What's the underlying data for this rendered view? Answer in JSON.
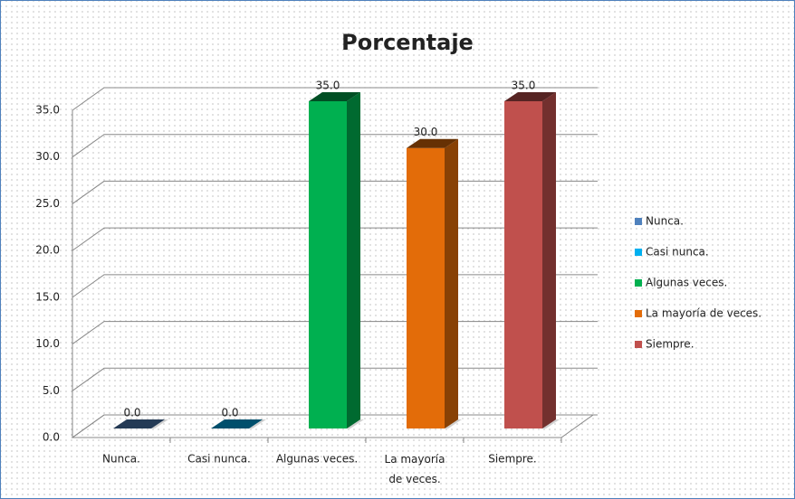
{
  "chart_data": {
    "type": "bar3d",
    "title": "Porcentaje",
    "categories": [
      "Nunca.",
      "Casi nunca.",
      "Algunas veces.",
      "La mayoría de veces.",
      "Siempre."
    ],
    "values": [
      0,
      0,
      35,
      30,
      35
    ],
    "value_labels": [
      "0.0",
      "0.0",
      "35.0",
      "30.0",
      "35.0"
    ],
    "colors": [
      "#4f81bd",
      "#00b0f0",
      "#00b050",
      "#e36c09",
      "#c0504d"
    ],
    "ylim": [
      0,
      35
    ],
    "yticks": [
      {
        "value": 0,
        "label": "0.0"
      },
      {
        "value": 5,
        "label": "5.0"
      },
      {
        "value": 10,
        "label": "10.0"
      },
      {
        "value": 15,
        "label": "15.0"
      },
      {
        "value": 20,
        "label": "20.0"
      },
      {
        "value": 25,
        "label": "25.0"
      },
      {
        "value": 30,
        "label": "30.0"
      },
      {
        "value": 35,
        "label": "35.0"
      }
    ],
    "grid": true,
    "legend": "right"
  }
}
